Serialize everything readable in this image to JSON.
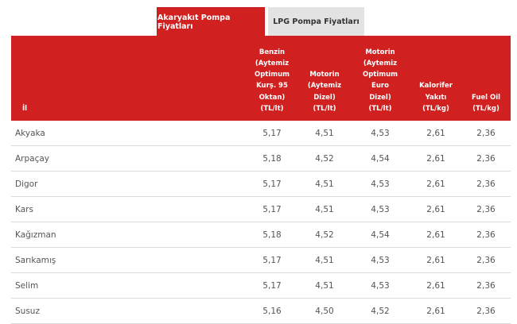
{
  "tabs": [
    {
      "label": "Akaryakıt Pompa Fiyatları",
      "active": true
    },
    {
      "label": "LPG Pompa Fiyatları",
      "active": false
    }
  ],
  "colors": {
    "accent": "#d0201f",
    "inactive_tab": "#e3e3e3"
  },
  "table": {
    "headers": [
      "İl",
      "Benzin (Aytemiz Optimum Kurş. 95 Oktan) (TL/lt)",
      "Motorin (Aytemiz Dizel) (TL/lt)",
      "Motorin (Aytemiz Optimum Euro Dizel) (TL/lt)",
      "Kalorifer Yakıtı (TL/kg)",
      "Fuel Oil (TL/kg)"
    ],
    "rows": [
      [
        "Akyaka",
        "5,17",
        "4,51",
        "4,53",
        "2,61",
        "2,36"
      ],
      [
        "Arpaçay",
        "5,18",
        "4,52",
        "4,54",
        "2,61",
        "2,36"
      ],
      [
        "Digor",
        "5,17",
        "4,51",
        "4,53",
        "2,61",
        "2,36"
      ],
      [
        "Kars",
        "5,17",
        "4,51",
        "4,53",
        "2,61",
        "2,36"
      ],
      [
        "Kağızman",
        "5,18",
        "4,52",
        "4,54",
        "2,61",
        "2,36"
      ],
      [
        "Sarıkamış",
        "5,17",
        "4,51",
        "4,53",
        "2,61",
        "2,36"
      ],
      [
        "Selim",
        "5,17",
        "4,51",
        "4,53",
        "2,61",
        "2,36"
      ],
      [
        "Susuz",
        "5,16",
        "4,50",
        "4,52",
        "2,61",
        "2,36"
      ]
    ]
  }
}
